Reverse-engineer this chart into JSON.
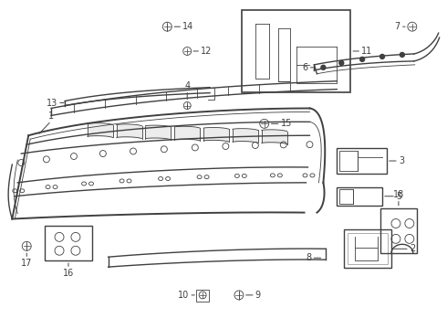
{
  "bg_color": "#ffffff",
  "line_color": "#404040",
  "fig_width": 4.9,
  "fig_height": 3.6,
  "dpi": 100,
  "label_fontsize": 7.0,
  "lw_main": 1.0,
  "lw_thin": 0.6,
  "lw_thick": 1.4
}
